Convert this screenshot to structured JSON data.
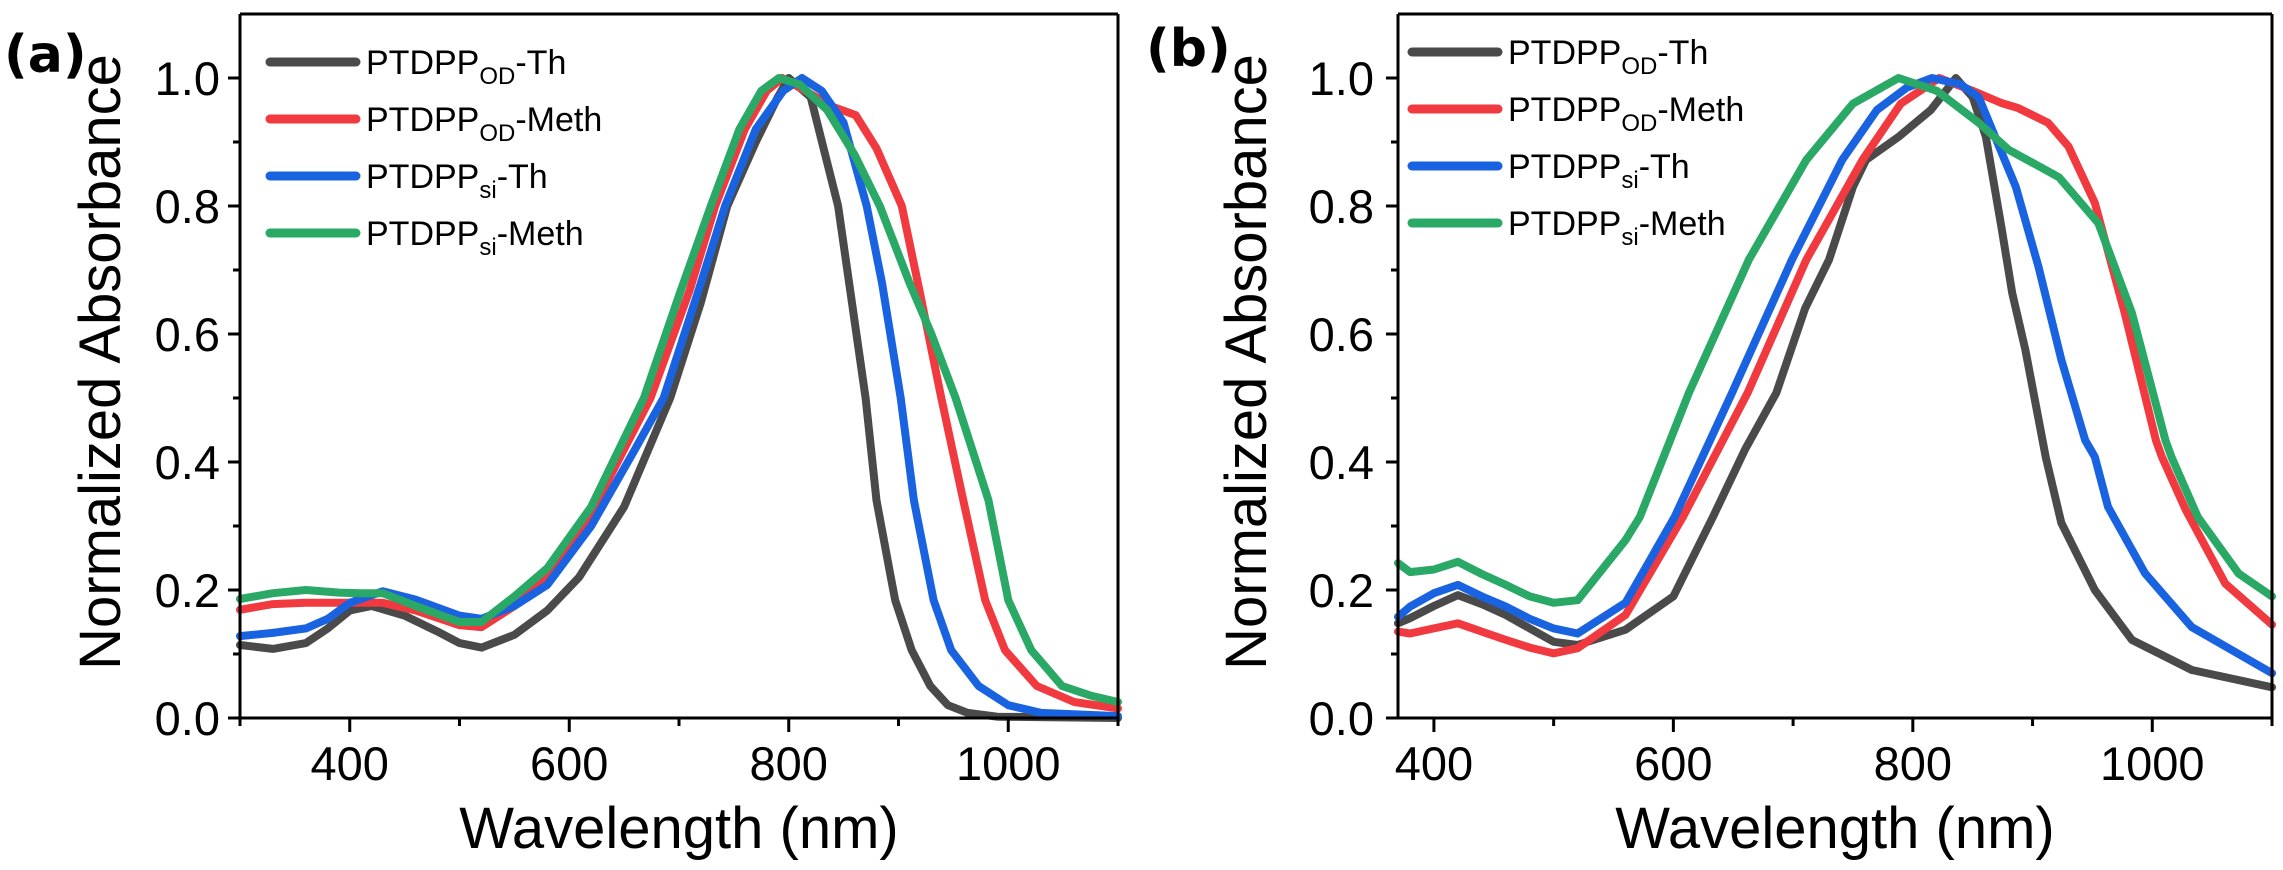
{
  "chart_data": [
    {
      "type": "line",
      "panel_label": "(a)",
      "title": "",
      "xlabel": "Wavelength (nm)",
      "ylabel": "Normalized Absorbance",
      "xlim": [
        300,
        1100
      ],
      "ylim": [
        0,
        1.1
      ],
      "xticks": [
        400,
        600,
        800,
        1000
      ],
      "xtick_labels": [
        "400",
        "600",
        "800",
        "1000"
      ],
      "x_minor_ticks": [
        300,
        500,
        700,
        900,
        1100
      ],
      "yticks": [
        0.0,
        0.2,
        0.4,
        0.6,
        0.8,
        1.0
      ],
      "ytick_labels": [
        "0.0",
        "0.2",
        "0.4",
        "0.6",
        "0.8",
        "1.0"
      ],
      "y_minor_ticks": [
        0.1,
        0.3,
        0.5,
        0.7,
        0.9
      ],
      "grid": false,
      "legend_position": "top-left",
      "series": [
        {
          "name": "PTDPP_OD-Th",
          "label_main": "PTDPP",
          "label_sub": "OD",
          "label_suffix": "-Th",
          "color": "#4a4a4a",
          "x": [
            300,
            330,
            360,
            380,
            400,
            420,
            450,
            480,
            500,
            520,
            550,
            580,
            609,
            650,
            692,
            720,
            744,
            770,
            790,
            800,
            820,
            845,
            860,
            870,
            880,
            893,
            897,
            912,
            929,
            945,
            963,
            990,
            1100
          ],
          "y": [
            0.114,
            0.108,
            0.117,
            0.14,
            0.168,
            0.175,
            0.16,
            0.135,
            0.117,
            0.11,
            0.13,
            0.168,
            0.22,
            0.33,
            0.5,
            0.65,
            0.8,
            0.9,
            0.97,
            1.0,
            0.97,
            0.8,
            0.62,
            0.5,
            0.34,
            0.22,
            0.184,
            0.106,
            0.05,
            0.02,
            0.008,
            0.002,
            0.0
          ]
        },
        {
          "name": "PTDPP_OD-Meth",
          "label_main": "PTDPP",
          "label_sub": "OD",
          "label_suffix": "-Meth",
          "color": "#f03a3f",
          "x": [
            300,
            330,
            360,
            390,
            410,
            430,
            460,
            500,
            520,
            550,
            580,
            620,
            674,
            710,
            733,
            760,
            780,
            794,
            815,
            840,
            861,
            880,
            903,
            920,
            939,
            959,
            979,
            997,
            1026,
            1060,
            1100
          ],
          "y": [
            0.169,
            0.178,
            0.18,
            0.18,
            0.18,
            0.18,
            0.168,
            0.145,
            0.142,
            0.175,
            0.22,
            0.32,
            0.5,
            0.67,
            0.8,
            0.92,
            0.98,
            1.0,
            0.98,
            0.955,
            0.942,
            0.89,
            0.8,
            0.66,
            0.5,
            0.34,
            0.184,
            0.106,
            0.05,
            0.025,
            0.015
          ]
        },
        {
          "name": "PTDPP_si-Th",
          "label_main": "PTDPP",
          "label_sub": "si",
          "label_suffix": "-Th",
          "color": "#1a63e0",
          "x": [
            300,
            330,
            360,
            380,
            400,
            430,
            460,
            500,
            520,
            550,
            580,
            620,
            660,
            686,
            720,
            742,
            770,
            795,
            812,
            830,
            850,
            871,
            885,
            902,
            914,
            932,
            948,
            973,
            1000,
            1030,
            1100
          ],
          "y": [
            0.128,
            0.133,
            0.14,
            0.155,
            0.18,
            0.198,
            0.185,
            0.16,
            0.155,
            0.175,
            0.208,
            0.3,
            0.42,
            0.5,
            0.68,
            0.8,
            0.92,
            0.98,
            1.0,
            0.98,
            0.93,
            0.8,
            0.68,
            0.5,
            0.34,
            0.184,
            0.106,
            0.05,
            0.02,
            0.008,
            0.003
          ]
        },
        {
          "name": "PTDPP_si-Meth",
          "label_main": "PTDPP",
          "label_sub": "si",
          "label_suffix": "-Meth",
          "color": "#2aa865",
          "x": [
            300,
            330,
            360,
            390,
            410,
            430,
            460,
            500,
            520,
            550,
            580,
            620,
            668,
            700,
            729,
            755,
            775,
            791,
            810,
            835,
            860,
            883,
            910,
            930,
            952,
            982,
            1000,
            1021,
            1049,
            1075,
            1100
          ],
          "y": [
            0.186,
            0.195,
            0.2,
            0.196,
            0.195,
            0.195,
            0.175,
            0.15,
            0.15,
            0.19,
            0.234,
            0.33,
            0.5,
            0.66,
            0.8,
            0.92,
            0.98,
            1.0,
            0.99,
            0.95,
            0.88,
            0.8,
            0.68,
            0.6,
            0.5,
            0.34,
            0.184,
            0.106,
            0.05,
            0.035,
            0.025
          ]
        }
      ]
    },
    {
      "type": "line",
      "panel_label": "(b)",
      "title": "",
      "xlabel": "Wavelength (nm)",
      "ylabel": "Normalized Absorbance",
      "xlim": [
        370,
        1100
      ],
      "ylim": [
        0,
        1.1
      ],
      "xticks": [
        400,
        600,
        800,
        1000
      ],
      "xtick_labels": [
        "400",
        "600",
        "800",
        "1000"
      ],
      "x_minor_ticks": [
        500,
        700,
        900,
        1100
      ],
      "yticks": [
        0.0,
        0.2,
        0.4,
        0.6,
        0.8,
        1.0
      ],
      "ytick_labels": [
        "0.0",
        "0.2",
        "0.4",
        "0.6",
        "0.8",
        "1.0"
      ],
      "y_minor_ticks": [
        0.1,
        0.3,
        0.5,
        0.7,
        0.9
      ],
      "grid": false,
      "legend_position": "top-left",
      "series": [
        {
          "name": "PTDPP_OD-Th",
          "label_main": "PTDPP",
          "label_sub": "OD",
          "label_suffix": "-Th",
          "color": "#4a4a4a",
          "x": [
            370,
            380,
            400,
            420,
            440,
            460,
            480,
            500,
            520,
            560,
            600,
            633,
            660,
            686,
            710,
            730,
            750,
            761,
            788,
            815,
            836,
            850,
            861,
            874,
            883,
            894,
            911,
            924,
            952,
            983,
            1033,
            1100
          ],
          "y": [
            0.148,
            0.156,
            0.175,
            0.192,
            0.178,
            0.161,
            0.14,
            0.119,
            0.114,
            0.138,
            0.19,
            0.314,
            0.42,
            0.508,
            0.64,
            0.716,
            0.83,
            0.872,
            0.908,
            0.95,
            1.0,
            0.97,
            0.908,
            0.767,
            0.664,
            0.575,
            0.408,
            0.305,
            0.2,
            0.122,
            0.075,
            0.048
          ]
        },
        {
          "name": "PTDPP_OD-Meth",
          "label_main": "PTDPP",
          "label_sub": "OD",
          "label_suffix": "-Meth",
          "color": "#f03a3f",
          "x": [
            370,
            380,
            400,
            420,
            440,
            460,
            480,
            500,
            520,
            560,
            608,
            662,
            711,
            758,
            790,
            822,
            850,
            874,
            888,
            913,
            930,
            952,
            977,
            1003,
            1008,
            1028,
            1061,
            1100
          ],
          "y": [
            0.135,
            0.132,
            0.14,
            0.148,
            0.135,
            0.122,
            0.11,
            0.101,
            0.109,
            0.161,
            0.314,
            0.508,
            0.716,
            0.872,
            0.96,
            1.0,
            0.98,
            0.961,
            0.953,
            0.93,
            0.893,
            0.805,
            0.633,
            0.434,
            0.408,
            0.325,
            0.21,
            0.146
          ]
        },
        {
          "name": "PTDPP_si-Th",
          "label_main": "PTDPP",
          "label_sub": "si",
          "label_suffix": "-Th",
          "color": "#1a63e0",
          "x": [
            370,
            380,
            400,
            420,
            440,
            460,
            480,
            500,
            520,
            560,
            601,
            649,
            699,
            741,
            770,
            795,
            816,
            840,
            855,
            886,
            905,
            924,
            944,
            952,
            963,
            994,
            1033,
            1100
          ],
          "y": [
            0.158,
            0.174,
            0.195,
            0.208,
            0.19,
            0.174,
            0.155,
            0.14,
            0.132,
            0.18,
            0.314,
            0.508,
            0.716,
            0.872,
            0.95,
            0.985,
            1.0,
            0.99,
            0.97,
            0.83,
            0.705,
            0.56,
            0.434,
            0.408,
            0.33,
            0.226,
            0.142,
            0.07
          ]
        },
        {
          "name": "PTDPP_si-Meth",
          "label_main": "PTDPP",
          "label_sub": "si",
          "label_suffix": "-Meth",
          "color": "#2aa865",
          "x": [
            370,
            380,
            400,
            420,
            440,
            460,
            480,
            500,
            520,
            560,
            572,
            613,
            663,
            711,
            750,
            788,
            820,
            855,
            880,
            922,
            955,
            983,
            1011,
            1016,
            1038,
            1072,
            1100
          ],
          "y": [
            0.242,
            0.228,
            0.232,
            0.244,
            0.225,
            0.208,
            0.19,
            0.18,
            0.184,
            0.278,
            0.314,
            0.508,
            0.716,
            0.872,
            0.96,
            1.0,
            0.98,
            0.93,
            0.888,
            0.845,
            0.773,
            0.633,
            0.434,
            0.408,
            0.314,
            0.226,
            0.19
          ]
        }
      ]
    }
  ]
}
